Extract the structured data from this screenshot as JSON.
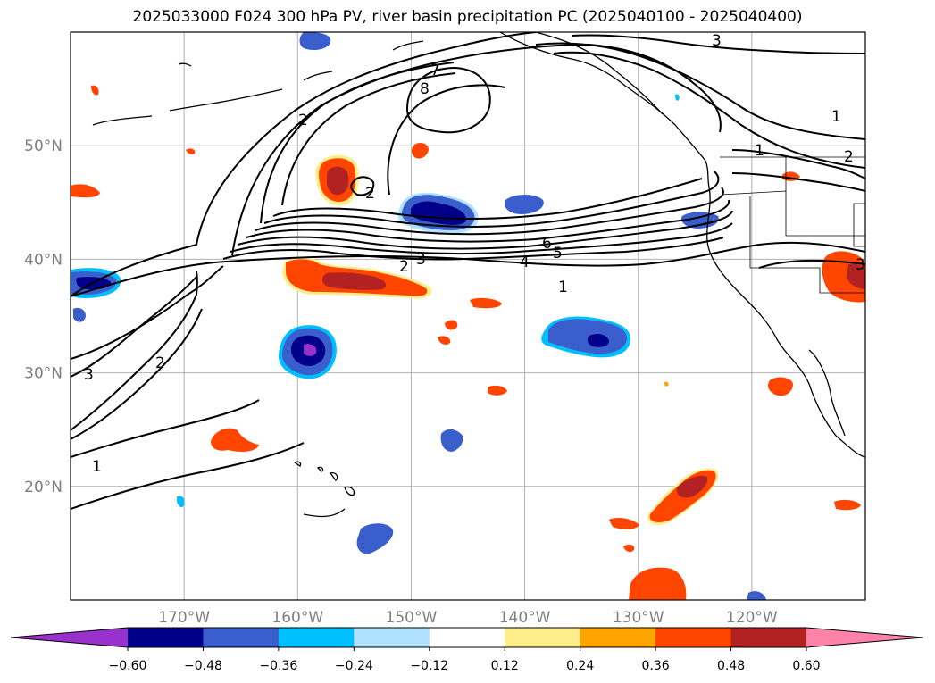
{
  "title": "2025033000 F024 300 hPa PV, river basin precipitation PC (2025040100 - 2025040400)",
  "map": {
    "lon_range": [
      -180,
      -110
    ],
    "lat_range": [
      10,
      60
    ],
    "lat_ticks": [
      {
        "value": 50,
        "label": "50°N"
      },
      {
        "value": 40,
        "label": "40°N"
      },
      {
        "value": 30,
        "label": "30°N"
      },
      {
        "value": 20,
        "label": "20°N"
      }
    ],
    "lon_ticks": [
      {
        "value": -170,
        "label": "170°W"
      },
      {
        "value": -160,
        "label": "160°W"
      },
      {
        "value": -150,
        "label": "150°W"
      },
      {
        "value": -140,
        "label": "140°W"
      },
      {
        "value": -130,
        "label": "130°W"
      },
      {
        "value": -120,
        "label": "120°W"
      }
    ],
    "grid": true,
    "contour_labels": [
      "1",
      "2",
      "3",
      "4",
      "5",
      "6",
      "7",
      "8",
      "3",
      "1",
      "1",
      "2",
      "2",
      "3",
      "2",
      "1",
      "3",
      "2"
    ]
  },
  "colorbar": {
    "ticks": [
      "−0.60",
      "−0.48",
      "−0.36",
      "−0.24",
      "−0.12",
      "0.12",
      "0.24",
      "0.36",
      "0.48",
      "0.60"
    ],
    "colors": [
      "#9932cc",
      "#00008b",
      "#3a5fcd",
      "#00bfff",
      "#b0e2ff",
      "#ffffff",
      "#ffec8b",
      "#ffa500",
      "#ff4500",
      "#b22222",
      "#ff82ab"
    ]
  }
}
